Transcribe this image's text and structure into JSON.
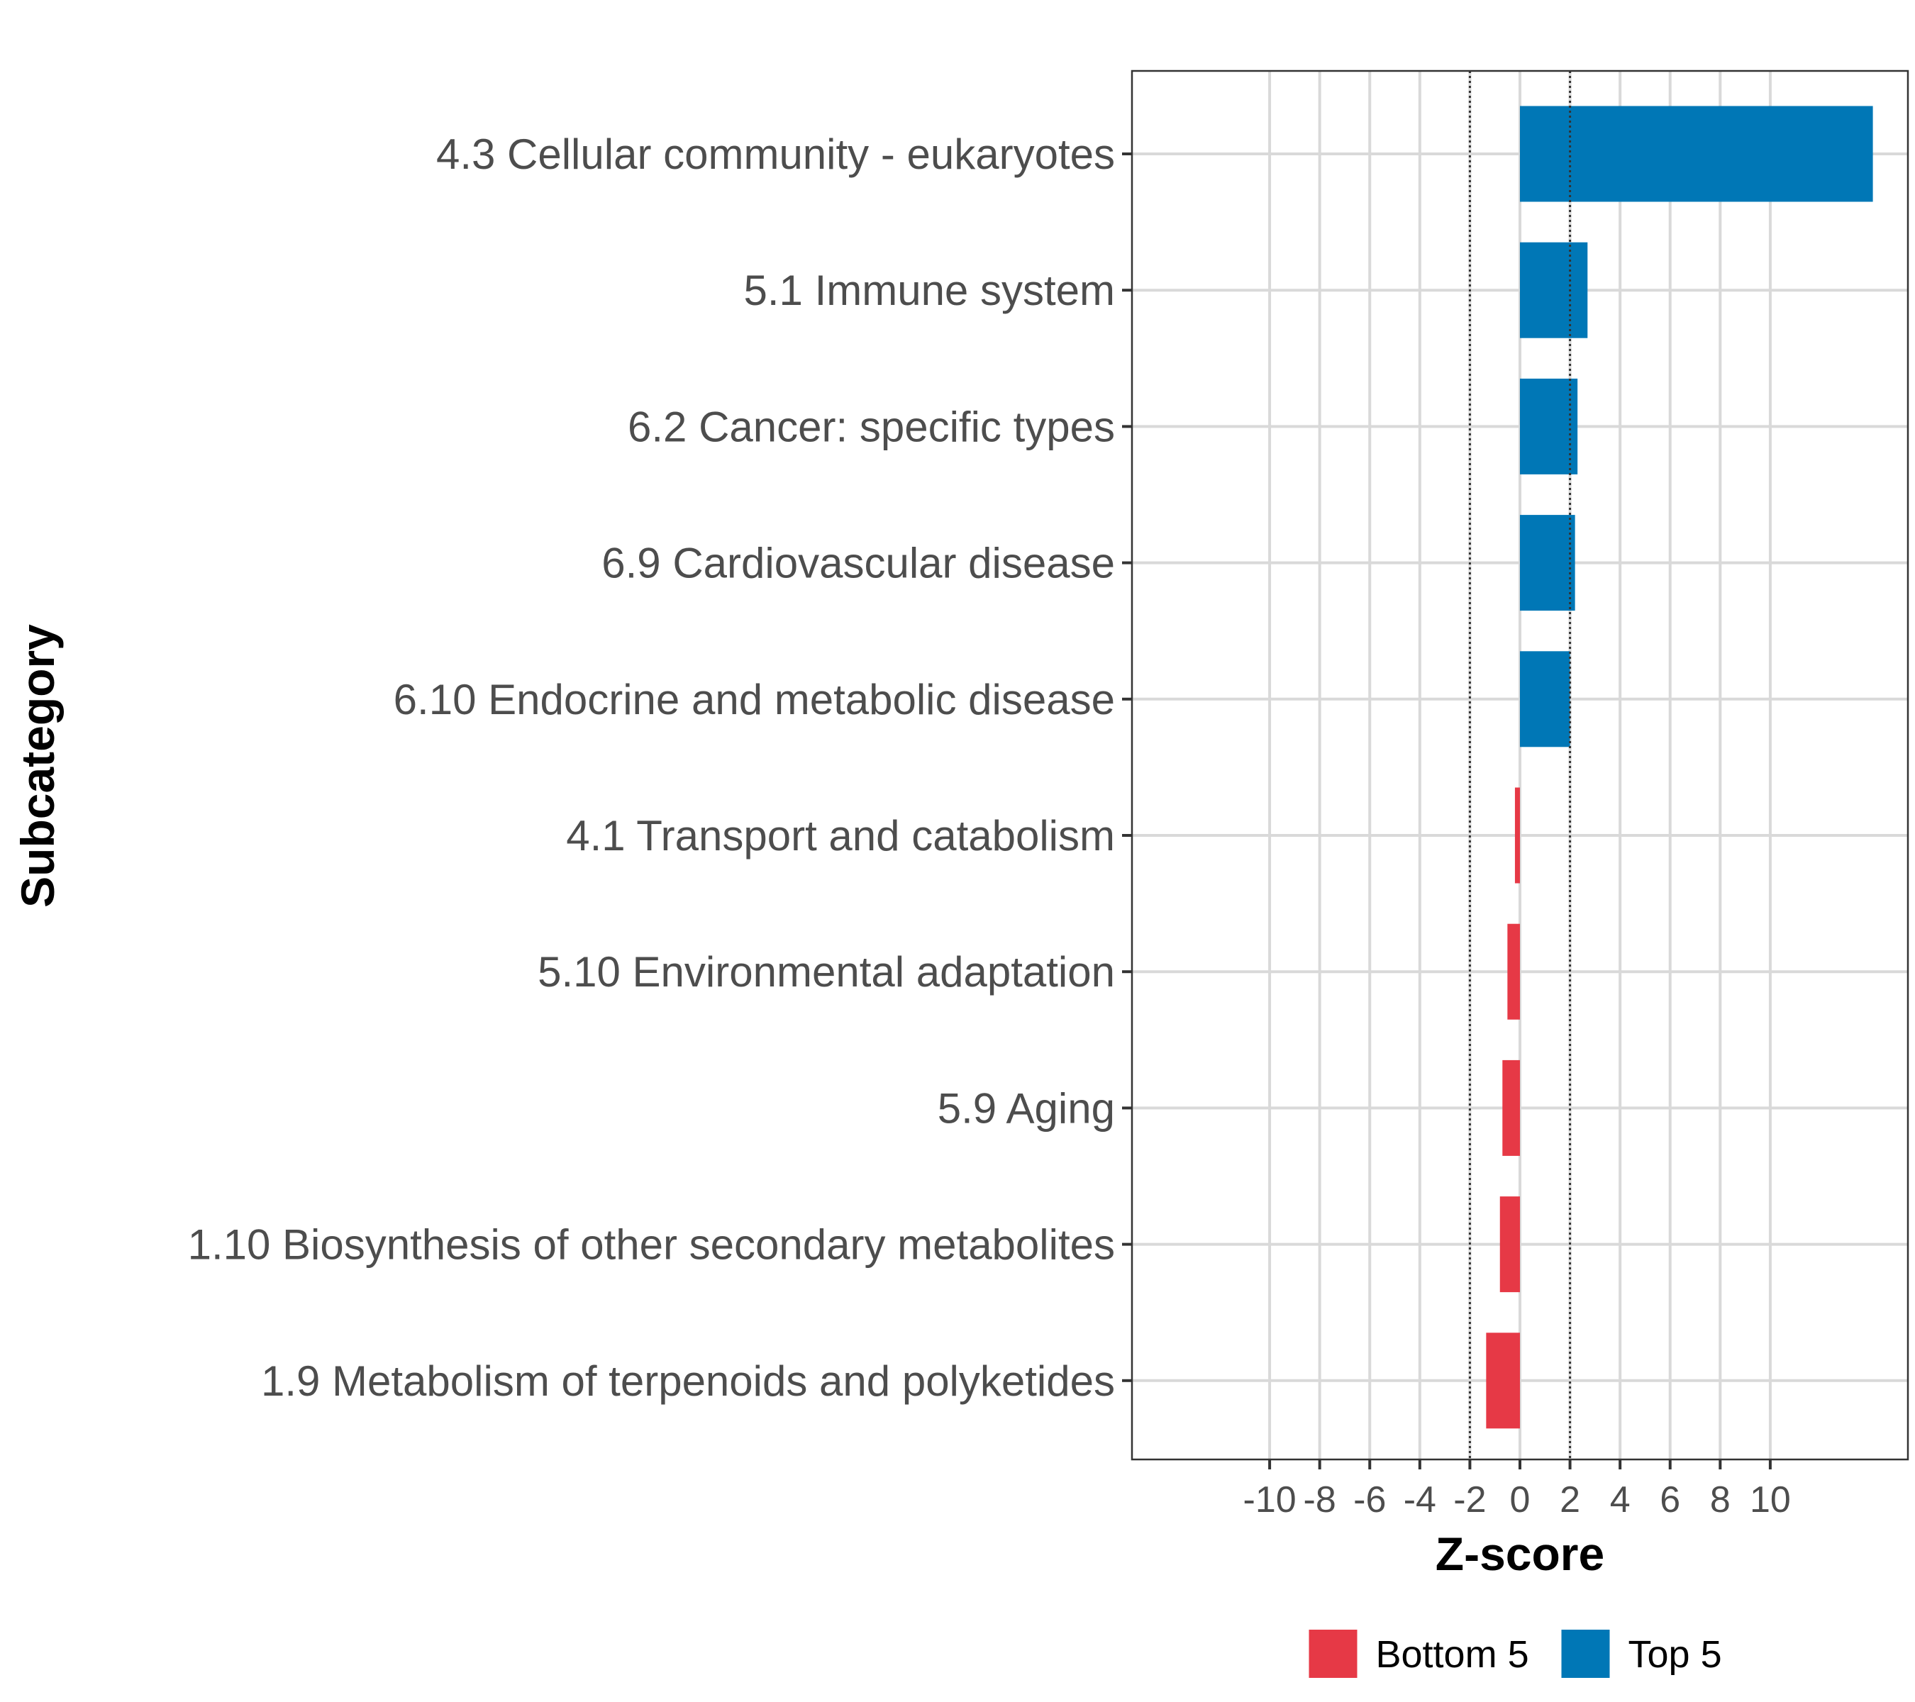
{
  "chart_data": {
    "type": "bar",
    "orientation": "horizontal",
    "xlabel": "Z-score",
    "ylabel": "Subcategory",
    "xlim": [
      -15.5,
      15.5
    ],
    "xticks": [
      -10,
      -8,
      -6,
      -4,
      -2,
      0,
      2,
      4,
      6,
      8,
      10
    ],
    "reference_lines": [
      -2,
      2
    ],
    "grid": true,
    "categories": [
      "4.3 Cellular community - eukaryotes",
      "5.1 Immune system",
      "6.2 Cancer: specific types",
      "6.9 Cardiovascular disease",
      "6.10 Endocrine and metabolic disease",
      "4.1 Transport and catabolism",
      "5.10 Environmental adaptation",
      "5.9 Aging",
      "1.10 Biosynthesis of other secondary metabolites",
      "1.9 Metabolism of terpenoids and polyketides"
    ],
    "values": [
      14.1,
      2.7,
      2.3,
      2.2,
      2.0,
      -0.2,
      -0.5,
      -0.7,
      -0.8,
      -1.35
    ],
    "groups": [
      "Top 5",
      "Top 5",
      "Top 5",
      "Top 5",
      "Top 5",
      "Bottom 5",
      "Bottom 5",
      "Bottom 5",
      "Bottom 5",
      "Bottom 5"
    ],
    "legend": {
      "position": "bottom",
      "entries": [
        {
          "label": "Bottom 5",
          "color": "#E63946"
        },
        {
          "label": "Top 5",
          "color": "#0077B6"
        }
      ]
    }
  }
}
